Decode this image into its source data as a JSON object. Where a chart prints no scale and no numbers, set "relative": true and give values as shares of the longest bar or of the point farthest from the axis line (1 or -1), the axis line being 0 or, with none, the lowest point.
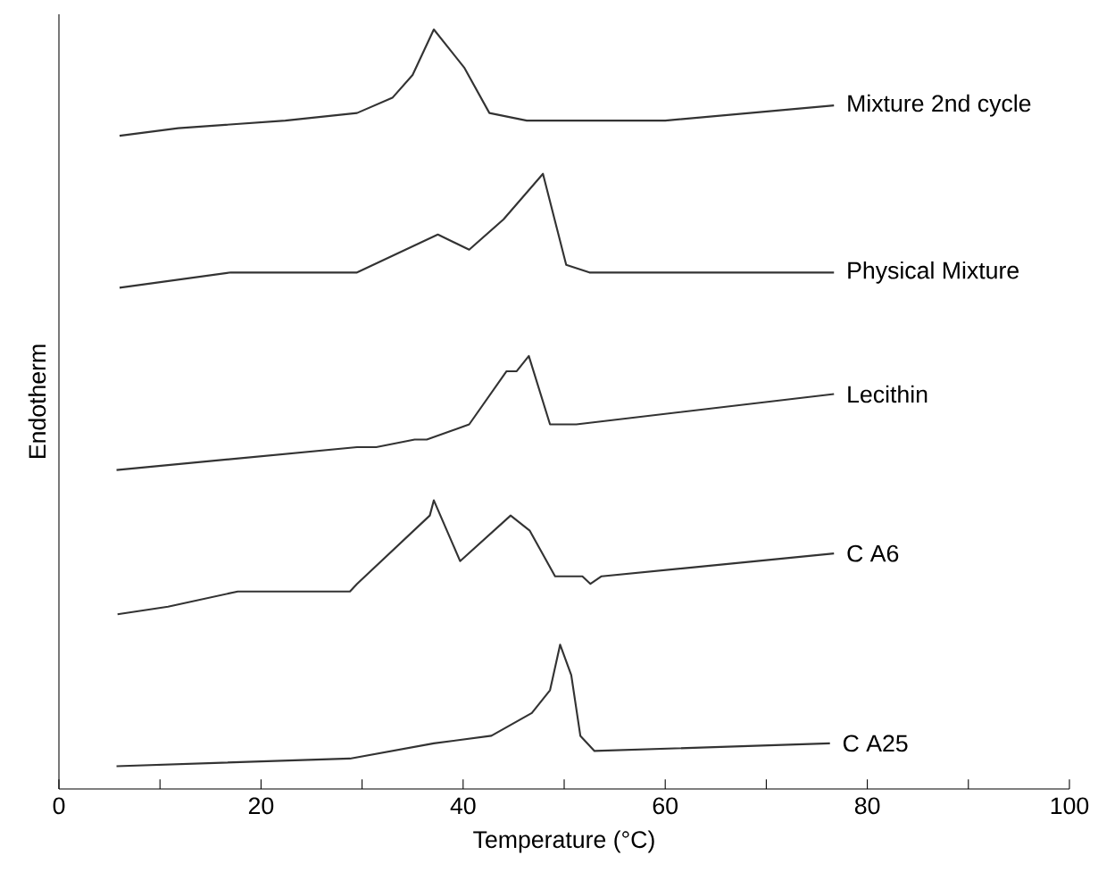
{
  "chart_data": {
    "type": "line",
    "relative": true,
    "xlabel": "Temperature (°C)",
    "ylabel": "Endotherm",
    "xlim": [
      0,
      100
    ],
    "xticks": [
      0,
      {
        "value": 10,
        "label": null
      },
      20,
      {
        "value": 30,
        "label": null
      },
      40,
      {
        "value": 50,
        "label": null
      },
      60,
      {
        "value": 70,
        "label": null
      },
      80,
      {
        "value": 90,
        "label": null
      },
      100
    ],
    "grid": false,
    "legend": false,
    "marker": "none",
    "line_style": "solid",
    "series": [
      {
        "name": "Mixture 2nd cycle",
        "color": "#333333",
        "x": [
          6,
          11.8,
          22.4,
          29.5,
          33,
          35,
          37.1,
          40.1,
          42.6,
          46.3,
          60,
          76.7
        ],
        "values": [
          0.86,
          0.87,
          0.88,
          0.89,
          0.91,
          0.94,
          1.0,
          0.95,
          0.89,
          0.88,
          0.88,
          0.9
        ]
      },
      {
        "name": "Physical Mixture",
        "color": "#333333",
        "x": [
          6,
          17,
          29.5,
          37.5,
          40.6,
          44,
          47.9,
          50.2,
          52.5,
          76.7
        ],
        "values": [
          0.66,
          0.68,
          0.68,
          0.73,
          0.71,
          0.75,
          0.81,
          0.69,
          0.68,
          0.68
        ]
      },
      {
        "name": "Lecithin",
        "color": "#333333",
        "x": [
          5.7,
          29.5,
          30.2,
          31.4,
          35.2,
          36.4,
          40.6,
          44.3,
          45.3,
          46.5,
          48.6,
          51.2,
          76.7
        ],
        "values": [
          0.42,
          0.45,
          0.45,
          0.45,
          0.46,
          0.46,
          0.48,
          0.55,
          0.55,
          0.57,
          0.48,
          0.48,
          0.52
        ]
      },
      {
        "name": "C A6",
        "color": "#333333",
        "x": [
          5.8,
          10.8,
          17.7,
          28.8,
          29.5,
          36.7,
          37.1,
          39.7,
          44.7,
          46.6,
          49.1,
          51.8,
          52.6,
          53.7,
          76.7
        ],
        "values": [
          0.23,
          0.24,
          0.26,
          0.26,
          0.27,
          0.36,
          0.38,
          0.3,
          0.36,
          0.34,
          0.28,
          0.28,
          0.27,
          0.28,
          0.31
        ]
      },
      {
        "name": "C A25",
        "color": "#333333",
        "x": [
          5.7,
          28.8,
          37.1,
          42.8,
          46.8,
          48.6,
          49.6,
          50.7,
          51.6,
          53,
          76.3
        ],
        "values": [
          0.03,
          0.04,
          0.06,
          0.07,
          0.1,
          0.13,
          0.19,
          0.15,
          0.07,
          0.05,
          0.06
        ]
      }
    ]
  }
}
